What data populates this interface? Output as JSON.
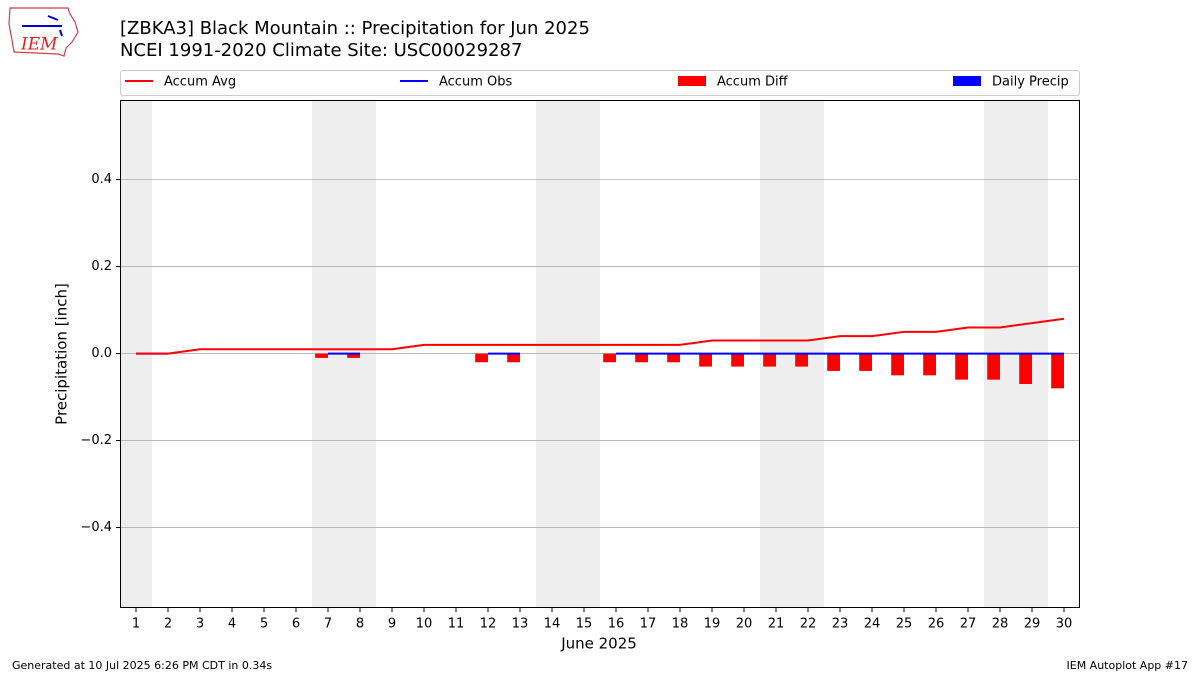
{
  "logo_text": "IEM",
  "footer_left": "Generated at 10 Jul 2025 6:26 PM CDT in 0.34s",
  "footer_right": "IEM Autoplot App #17",
  "chart_data": {
    "type": "combo",
    "title": "[ZBKA3] Black Mountain :: Precipitation for Jun 2025",
    "subtitle": "NCEI 1991-2020 Climate Site: USC00029287",
    "x_label": "June 2025",
    "y_label": "Precipitation [inch]",
    "x": [
      1,
      2,
      3,
      4,
      5,
      6,
      7,
      8,
      9,
      10,
      11,
      12,
      13,
      14,
      15,
      16,
      17,
      18,
      19,
      20,
      21,
      22,
      23,
      24,
      25,
      26,
      27,
      28,
      29,
      30
    ],
    "xlim": [
      0.5,
      30.5
    ],
    "ylim": [
      -0.585,
      0.583
    ],
    "yticks": [
      {
        "value": -0.4,
        "label": "−0.4"
      },
      {
        "value": -0.2,
        "label": "−0.2"
      },
      {
        "value": 0,
        "label": "0.0"
      },
      0.2,
      0.4
    ],
    "grid": true,
    "shaded_days": [
      1,
      7,
      8,
      14,
      15,
      21,
      22,
      28,
      29
    ],
    "series": [
      {
        "name": "Accum Avg",
        "color": "#ff0000",
        "kind": "line",
        "values": [
          0,
          0,
          0.01,
          0.01,
          0.01,
          0.01,
          0.01,
          0.01,
          0.01,
          0.02,
          0.02,
          0.02,
          0.02,
          0.02,
          0.02,
          0.02,
          0.02,
          0.02,
          0.03,
          0.03,
          0.03,
          0.03,
          0.04,
          0.04,
          0.05,
          0.05,
          0.06,
          0.06,
          0.07,
          0.08
        ]
      },
      {
        "name": "Accum Obs",
        "color": "#0000ff",
        "kind": "line",
        "values": [
          0,
          0,
          null,
          null,
          null,
          null,
          0,
          0,
          null,
          null,
          null,
          0,
          0,
          null,
          null,
          0,
          0,
          0,
          0,
          0,
          0,
          0,
          0,
          0,
          0,
          0,
          0,
          0,
          0,
          0
        ]
      },
      {
        "name": "Accum Diff",
        "color": "#ff0000",
        "kind": "bar",
        "offset": -0.2,
        "values": [
          0,
          0,
          null,
          null,
          null,
          null,
          -0.01,
          -0.01,
          null,
          null,
          null,
          -0.02,
          -0.02,
          null,
          null,
          -0.02,
          -0.02,
          -0.02,
          -0.03,
          -0.03,
          -0.03,
          -0.03,
          -0.04,
          -0.04,
          -0.05,
          -0.05,
          -0.06,
          -0.06,
          -0.07,
          -0.08
        ]
      },
      {
        "name": "Daily Precip",
        "color": "#0000ff",
        "kind": "bar",
        "offset": 0.2,
        "values": [
          0,
          0,
          null,
          null,
          null,
          null,
          0,
          0,
          null,
          null,
          null,
          0,
          0,
          null,
          null,
          0,
          0,
          0,
          0,
          0,
          0,
          0,
          0,
          0,
          0,
          0,
          0,
          0,
          0,
          0
        ]
      }
    ]
  }
}
